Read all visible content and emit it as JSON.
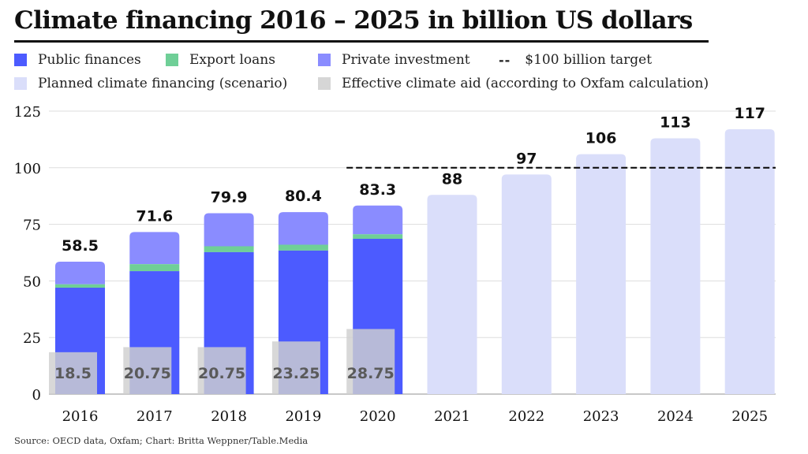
{
  "colors": {
    "public": "#4c5bff",
    "export": "#6fcf97",
    "private": "#8a8cff",
    "planned": "#dadefa",
    "effective_aid": "#cfcfcf",
    "target": "#111111",
    "grid": "#dddddd"
  },
  "legend": {
    "public": "Public finances",
    "export": "Export loans",
    "private": "Private investment",
    "target_symbol": "--",
    "target": "$100 billion target",
    "planned": "Planned climate financing (scenario)",
    "effective": "Effective climate aid (according to Oxfam calculation)"
  },
  "source": "Source: OECD data, Oxfam; Chart: Britta Weppner/Table.Media",
  "chart_data": {
    "type": "bar",
    "title": "Climate financing 2016 – 2025 in billion US dollars",
    "xlabel": "",
    "ylabel": "",
    "ylim": [
      0,
      125
    ],
    "yticks": [
      0,
      25,
      50,
      75,
      100,
      125
    ],
    "grid": true,
    "legend_position": "top",
    "categories": [
      "2016",
      "2017",
      "2018",
      "2019",
      "2020",
      "2021",
      "2022",
      "2023",
      "2024",
      "2025"
    ],
    "series": [
      {
        "name": "Public finances",
        "stacked": true,
        "values": [
          47.0,
          54.3,
          62.7,
          63.4,
          68.6,
          null,
          null,
          null,
          null,
          null
        ]
      },
      {
        "name": "Export loans",
        "stacked": true,
        "values": [
          1.5,
          3.1,
          2.6,
          2.6,
          2.0,
          null,
          null,
          null,
          null,
          null
        ]
      },
      {
        "name": "Private investment",
        "stacked": true,
        "values": [
          10.0,
          14.2,
          14.6,
          14.4,
          12.7,
          null,
          null,
          null,
          null,
          null
        ]
      },
      {
        "name": "Planned climate financing (scenario)",
        "values": [
          null,
          null,
          null,
          null,
          null,
          88,
          97,
          106,
          113,
          117
        ]
      },
      {
        "name": "Effective climate aid (according to Oxfam calculation)",
        "values": [
          18.5,
          20.75,
          20.75,
          23.25,
          28.75,
          null,
          null,
          null,
          null,
          null
        ]
      }
    ],
    "totals": [
      "58.5",
      "71.6",
      "79.9",
      "80.4",
      "83.3",
      "88",
      "97",
      "106",
      "113",
      "117"
    ],
    "effective_aid_labels": [
      "18.5",
      "20.75",
      "20.75",
      "23.25",
      "28.75"
    ],
    "target_line": {
      "label": "$100 billion target",
      "value": 100,
      "from_category": "2020",
      "to_category": "2025"
    }
  }
}
